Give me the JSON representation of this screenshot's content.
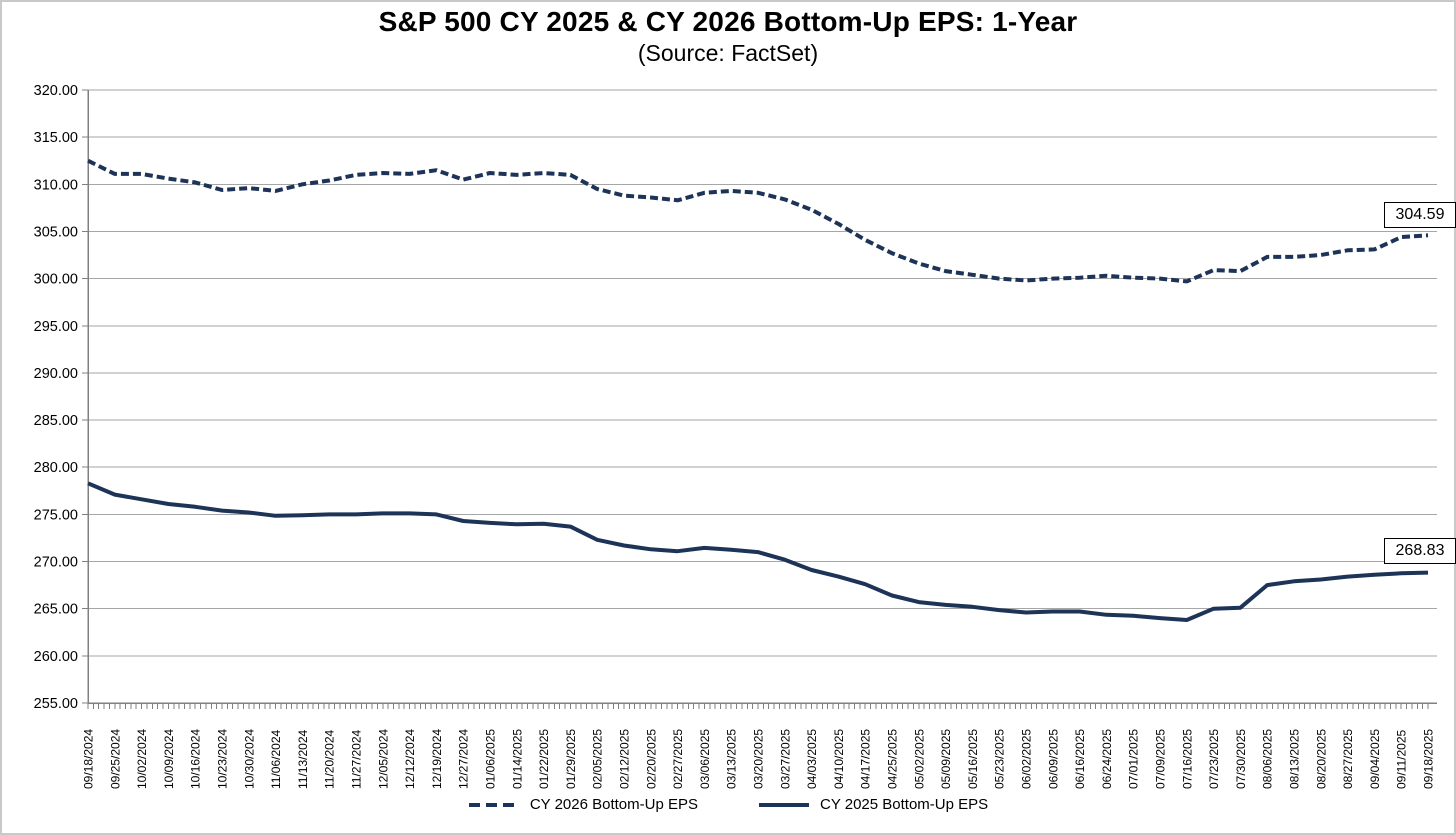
{
  "title": "S&P 500 CY 2025 & CY 2026 Bottom-Up EPS: 1-Year",
  "subtitle": "(Source: FactSet)",
  "end_labels": {
    "cy2026": "304.59",
    "cy2025": "268.83"
  },
  "legend": {
    "items": [
      {
        "label": "CY 2026 Bottom-Up EPS",
        "style": "dashed"
      },
      {
        "label": "CY 2025 Bottom-Up EPS",
        "style": "solid"
      }
    ]
  },
  "colors": {
    "line": "#1d3357",
    "grid": "#a6a6a6",
    "axis": "#808080",
    "text": "#000000",
    "label_box_border": "#000000"
  },
  "chart_data": {
    "type": "line",
    "title": "S&P 500 CY 2025 & CY 2026 Bottom-Up EPS: 1-Year",
    "subtitle": "(Source: FactSet)",
    "ylim": [
      255,
      320
    ],
    "ytick_step": 5,
    "ytick_labels": [
      "320.00",
      "315.00",
      "310.00",
      "305.00",
      "300.00",
      "295.00",
      "290.00",
      "285.00",
      "280.00",
      "275.00",
      "270.00",
      "265.00",
      "260.00",
      "255.00"
    ],
    "grid": "horizontal",
    "legend_position": "bottom",
    "x": [
      "09/18/2024",
      "09/25/2024",
      "10/02/2024",
      "10/09/2024",
      "10/16/2024",
      "10/23/2024",
      "10/30/2024",
      "11/06/2024",
      "11/13/2024",
      "11/20/2024",
      "11/27/2024",
      "12/05/2024",
      "12/12/2024",
      "12/19/2024",
      "12/27/2024",
      "01/06/2025",
      "01/14/2025",
      "01/22/2025",
      "01/29/2025",
      "02/05/2025",
      "02/12/2025",
      "02/20/2025",
      "02/27/2025",
      "03/06/2025",
      "03/13/2025",
      "03/20/2025",
      "03/27/2025",
      "04/03/2025",
      "04/10/2025",
      "04/17/2025",
      "04/25/2025",
      "05/02/2025",
      "05/09/2025",
      "05/16/2025",
      "05/23/2025",
      "06/02/2025",
      "06/09/2025",
      "06/16/2025",
      "06/24/2025",
      "07/01/2025",
      "07/09/2025",
      "07/16/2025",
      "07/23/2025",
      "07/30/2025",
      "08/06/2025",
      "08/13/2025",
      "08/20/2025",
      "08/27/2025",
      "09/04/2025",
      "09/11/2025",
      "09/18/2025"
    ],
    "series": [
      {
        "name": "CY 2026 Bottom-Up EPS",
        "style": "dashed",
        "end_value": 304.59,
        "values": [
          312.5,
          311.1,
          311.1,
          310.6,
          310.2,
          309.4,
          309.6,
          309.3,
          310.0,
          310.4,
          311.0,
          311.2,
          311.1,
          311.5,
          310.5,
          311.2,
          311.0,
          311.2,
          311.0,
          309.5,
          308.8,
          308.6,
          308.3,
          309.1,
          309.3,
          309.1,
          308.4,
          307.3,
          305.8,
          304.1,
          302.7,
          301.6,
          300.8,
          300.4,
          300.0,
          299.8,
          300.0,
          300.1,
          300.3,
          300.1,
          300.0,
          299.7,
          300.9,
          300.8,
          302.3,
          302.3,
          302.5,
          303.0,
          303.1,
          304.4,
          304.59
        ]
      },
      {
        "name": "CY 2025 Bottom-Up EPS",
        "style": "solid",
        "end_value": 268.83,
        "values": [
          278.3,
          277.1,
          276.6,
          276.1,
          275.8,
          275.4,
          275.2,
          274.85,
          274.9,
          275.0,
          275.0,
          275.1,
          275.1,
          275.0,
          274.3,
          274.1,
          273.95,
          274.0,
          273.7,
          272.3,
          271.7,
          271.3,
          271.1,
          271.45,
          271.25,
          271.0,
          270.2,
          269.1,
          268.4,
          267.6,
          266.4,
          265.7,
          265.4,
          265.2,
          264.85,
          264.6,
          264.7,
          264.7,
          264.35,
          264.25,
          264.0,
          263.8,
          265.0,
          265.1,
          267.5,
          267.9,
          268.1,
          268.4,
          268.6,
          268.75,
          268.83
        ]
      }
    ]
  }
}
